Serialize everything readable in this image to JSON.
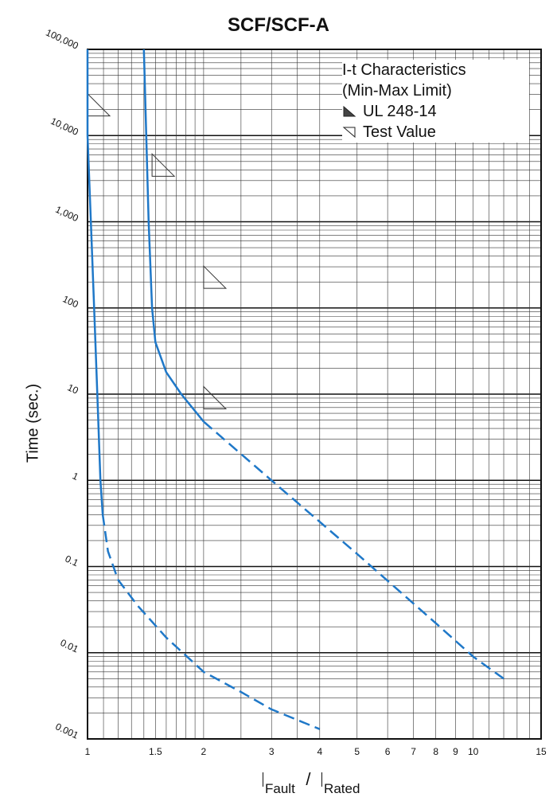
{
  "chart_data": {
    "type": "line",
    "title": "SCF/SCF-A",
    "ylabel": "Time (sec.)",
    "xlabel": {
      "main": "I",
      "sub1": "Fault",
      "slash": "/",
      "main2": "I",
      "sub2": "Rated"
    },
    "x_scale": "log",
    "y_scale": "log",
    "xlim": [
      1,
      15
    ],
    "ylim": [
      0.001,
      100000
    ],
    "grid": true,
    "x_ticks": [
      {
        "value": 1,
        "label": "1"
      },
      {
        "value": 1.5,
        "label": "1.5"
      },
      {
        "value": 2,
        "label": "2"
      },
      {
        "value": 3,
        "label": "3"
      },
      {
        "value": 4,
        "label": "4"
      },
      {
        "value": 5,
        "label": "5"
      },
      {
        "value": 6,
        "label": "6"
      },
      {
        "value": 7,
        "label": "7"
      },
      {
        "value": 8,
        "label": "8"
      },
      {
        "value": 9,
        "label": "9"
      },
      {
        "value": 10,
        "label": "10"
      },
      {
        "value": 15,
        "label": "15"
      }
    ],
    "y_ticks": [
      {
        "value": 100000,
        "label": "100,000"
      },
      {
        "value": 10000,
        "label": "10,000"
      },
      {
        "value": 1000,
        "label": "1,000"
      },
      {
        "value": 100,
        "label": "100"
      },
      {
        "value": 10,
        "label": "10"
      },
      {
        "value": 1,
        "label": "1"
      },
      {
        "value": 0.1,
        "label": "0.1"
      },
      {
        "value": 0.01,
        "label": "0.01"
      },
      {
        "value": 0.001,
        "label": "0.001"
      }
    ],
    "legend": {
      "position": "top-right",
      "title_line1": "I-t Characteristics",
      "title_line2": "(Min-Max Limit)",
      "items": [
        {
          "label": "UL 248-14",
          "symbol": "filled-triangle"
        },
        {
          "label": "Test Value",
          "symbol": "open-triangle"
        }
      ]
    },
    "series": [
      {
        "color": "#1f78c8",
        "solid": [
          [
            1.0,
            100000
          ],
          [
            1.0,
            10000
          ],
          [
            1.02,
            1000
          ],
          [
            1.04,
            100
          ],
          [
            1.06,
            10
          ],
          [
            1.08,
            1
          ],
          [
            1.095,
            0.4
          ]
        ],
        "dashed": [
          [
            1.095,
            0.4
          ],
          [
            1.13,
            0.15
          ],
          [
            1.2,
            0.07
          ],
          [
            1.35,
            0.035
          ],
          [
            1.6,
            0.015
          ],
          [
            2.0,
            0.006
          ],
          [
            2.5,
            0.0035
          ],
          [
            3.0,
            0.0022
          ],
          [
            4.0,
            0.0013
          ]
        ]
      },
      {
        "color": "#1f78c8",
        "solid": [
          [
            1.4,
            100000
          ],
          [
            1.42,
            10000
          ],
          [
            1.44,
            1000
          ],
          [
            1.47,
            100
          ],
          [
            1.5,
            40
          ],
          [
            1.6,
            18
          ],
          [
            1.75,
            10
          ],
          [
            2.0,
            4.8
          ]
        ],
        "dashed": [
          [
            2.0,
            4.8
          ],
          [
            3.0,
            1.0
          ],
          [
            5.0,
            0.14
          ],
          [
            8.0,
            0.022
          ],
          [
            10.0,
            0.009
          ],
          [
            12.0,
            0.005
          ]
        ]
      }
    ],
    "markers": [
      {
        "type": "open-triangle",
        "x": 1.0,
        "y": 20000
      },
      {
        "type": "open-triangle",
        "x": 1.47,
        "y": 4000
      },
      {
        "type": "open-triangle",
        "x": 2.0,
        "y": 200
      },
      {
        "type": "open-triangle",
        "x": 2.0,
        "y": 8
      }
    ]
  }
}
